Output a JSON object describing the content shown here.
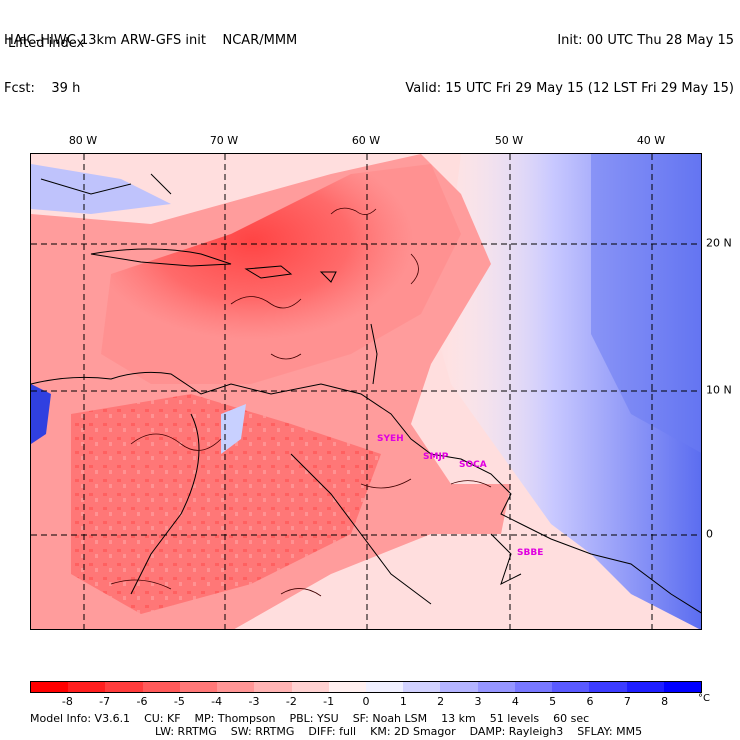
{
  "header": {
    "model_title": "HAIC-HIWC 13km ARW-GFS init    NCAR/MMM",
    "forecast": "Fcst:    39 h",
    "init": "Init: 00 UTC Thu 28 May 15",
    "valid": "Valid: 15 UTC Fri 29 May 15 (12 LST Fri 29 May 15)",
    "field": "Lifted index"
  },
  "map": {
    "longitude_labels": [
      "80 W",
      "70 W",
      "60 W",
      "50 W",
      "40 W"
    ],
    "latitude_labels": [
      "20 N",
      "10 N",
      "0"
    ],
    "stations": [
      "SYEH",
      "SMJP",
      "SOCA",
      "SBBE"
    ],
    "colors": {
      "border": "#000000",
      "contour": "#000000",
      "grid": "#000000",
      "station": "#e000e0"
    }
  },
  "legend": {
    "ticks": [
      "-8",
      "-7",
      "-6",
      "-5",
      "-4",
      "-3",
      "-2",
      "-1",
      "0",
      "1",
      "2",
      "3",
      "4",
      "5",
      "6",
      "7",
      "8"
    ],
    "unit": "°C",
    "colors": [
      "#ff0000",
      "#ff1e1e",
      "#ff3c3c",
      "#ff5a5a",
      "#ff7878",
      "#ff9696",
      "#ffb4b4",
      "#ffd2d2",
      "#fff0f0",
      "#f0f0ff",
      "#d2d2ff",
      "#b4b4ff",
      "#9696ff",
      "#7878ff",
      "#5a5aff",
      "#3c3cff",
      "#1e1eff",
      "#0000ff"
    ]
  },
  "model_info": {
    "line1": [
      "Model Info: V3.6.1",
      "CU: KF",
      "MP: Thompson",
      "PBL: YSU",
      "SF: Noah LSM",
      "13 km",
      "51 levels",
      "60 sec"
    ],
    "line2": [
      "LW: RRTMG",
      "SW: RRTMG",
      "DIFF: full",
      "KM: 2D Smagor",
      "DAMP: Rayleigh3",
      "SFLAY: MM5"
    ]
  }
}
